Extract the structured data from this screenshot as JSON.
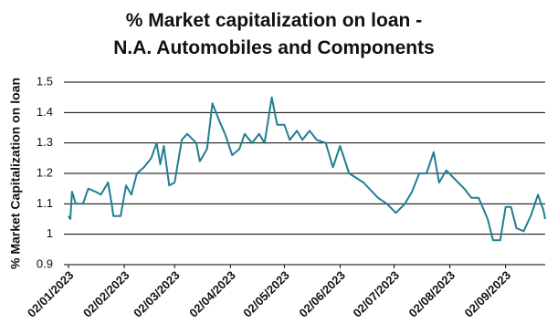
{
  "chart_data": {
    "type": "line",
    "title": "% Market capitalization on loan - N.A. Automobiles and Components",
    "y_label": "% Market Capitalization on loan",
    "xlim": [
      "02/01/2023",
      "24/09/2023"
    ],
    "xticks": [
      "02/01/2023",
      "02/02/2023",
      "02/03/2023",
      "02/04/2023",
      "02/05/2023",
      "02/06/2023",
      "02/07/2023",
      "02/08/2023",
      "02/09/2023"
    ],
    "ylim": [
      0.9,
      1.5
    ],
    "yticks": [
      0.9,
      1,
      1.1,
      1.2,
      1.3,
      1.4,
      1.5
    ],
    "grid": true,
    "series": [
      {
        "name": "% Market capitalization on loan",
        "color": "#1f7f91",
        "x": [
          "02/01/2023",
          "03/01/2023",
          "04/01/2023",
          "06/01/2023",
          "10/01/2023",
          "13/01/2023",
          "17/01/2023",
          "20/01/2023",
          "24/01/2023",
          "26/01/2023",
          "27/01/2023",
          "31/01/2023",
          "03/02/2023",
          "06/02/2023",
          "09/02/2023",
          "13/02/2023",
          "17/02/2023",
          "20/02/2023",
          "22/02/2023",
          "24/02/2023",
          "27/02/2023",
          "02/03/2023",
          "06/03/2023",
          "09/03/2023",
          "14/03/2023",
          "16/03/2023",
          "20/03/2023",
          "23/03/2023",
          "27/03/2023",
          "30/03/2023",
          "03/04/2023",
          "07/04/2023",
          "10/04/2023",
          "14/04/2023",
          "18/04/2023",
          "21/04/2023",
          "25/04/2023",
          "28/04/2023",
          "02/05/2023",
          "05/05/2023",
          "09/05/2023",
          "12/05/2023",
          "16/05/2023",
          "20/05/2023",
          "25/05/2023",
          "29/05/2023",
          "02/06/2023",
          "07/06/2023",
          "15/06/2023",
          "23/06/2023",
          "28/06/2023",
          "03/07/2023",
          "08/07/2023",
          "12/07/2023",
          "16/07/2023",
          "20/07/2023",
          "24/07/2023",
          "27/07/2023",
          "31/07/2023",
          "05/08/2023",
          "10/08/2023",
          "14/08/2023",
          "18/08/2023",
          "23/08/2023",
          "26/08/2023",
          "30/08/2023",
          "02/09/2023",
          "05/09/2023",
          "08/09/2023",
          "12/09/2023",
          "16/09/2023",
          "20/09/2023",
          "23/09/2023",
          "24/09/2023"
        ],
        "values": [
          1.06,
          1.05,
          1.14,
          1.1,
          1.1,
          1.15,
          1.14,
          1.13,
          1.17,
          1.1,
          1.06,
          1.06,
          1.16,
          1.13,
          1.2,
          1.22,
          1.25,
          1.3,
          1.23,
          1.29,
          1.16,
          1.17,
          1.31,
          1.33,
          1.3,
          1.24,
          1.28,
          1.43,
          1.37,
          1.33,
          1.26,
          1.28,
          1.33,
          1.3,
          1.33,
          1.3,
          1.45,
          1.36,
          1.36,
          1.31,
          1.34,
          1.31,
          1.34,
          1.31,
          1.3,
          1.22,
          1.29,
          1.2,
          1.17,
          1.12,
          1.1,
          1.07,
          1.1,
          1.14,
          1.2,
          1.2,
          1.27,
          1.17,
          1.21,
          1.18,
          1.15,
          1.12,
          1.12,
          1.05,
          0.98,
          0.98,
          1.09,
          1.09,
          1.02,
          1.01,
          1.06,
          1.13,
          1.08,
          1.05
        ]
      }
    ]
  }
}
